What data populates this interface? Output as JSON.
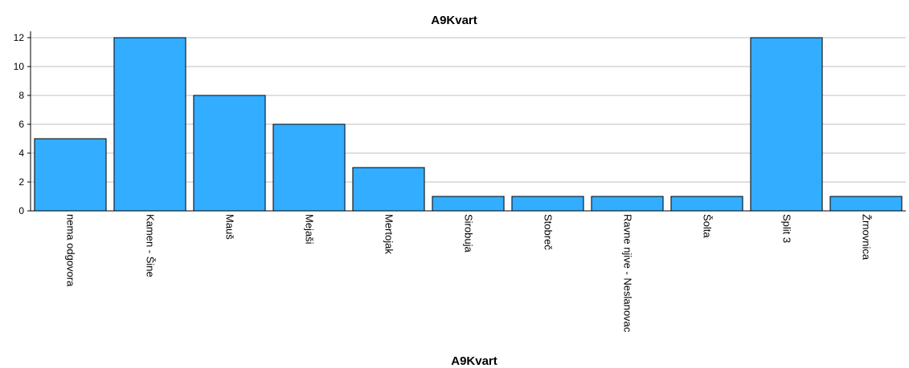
{
  "chart_data": {
    "type": "bar",
    "title": "A9Kvart",
    "xlabel": "A9Kvart",
    "ylabel": "",
    "categories": [
      "nema odgovora",
      "Kamen - Šine",
      "Mauš",
      "Mejaši",
      "Mertojak",
      "Sirobuja",
      "Stobreč",
      "Ravne njive - Neslanovac",
      "Šolta",
      "Split 3",
      "Žrnovnica"
    ],
    "values": [
      5,
      12,
      8,
      6,
      3,
      1,
      1,
      1,
      1,
      12,
      1
    ],
    "ylim": [
      0,
      12
    ],
    "yticks": [
      0,
      2,
      4,
      6,
      8,
      10,
      12
    ],
    "grid": true,
    "bar_color": "#33adff",
    "bar_edge_color": "#000000",
    "legend": "none"
  }
}
